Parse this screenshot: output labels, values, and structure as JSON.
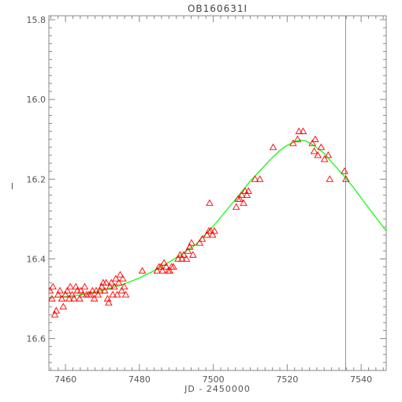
{
  "chart_data": {
    "type": "scatter",
    "title": "OB160631I",
    "xlabel": "JD - 2450000",
    "ylabel": "I",
    "xlim": [
      7455.5,
      7546.8
    ],
    "ylim": [
      16.68,
      15.79
    ],
    "y_inverted": true,
    "xticks": [
      7460,
      7480,
      7500,
      7520,
      7540
    ],
    "yticks": [
      15.8,
      16.0,
      16.2,
      16.4,
      16.6
    ],
    "xtick_labels": [
      "7460",
      "7480",
      "7500",
      "7520",
      "7540"
    ],
    "ytick_labels": [
      "15.8",
      "16.0",
      "16.2",
      "16.4",
      "16.6"
    ],
    "grid": false,
    "marker": "triangle",
    "colors": {
      "points": "#ff0000",
      "model": "#00ff00",
      "vline": "#8888cc",
      "axes": "#888888"
    },
    "vertical_line": {
      "x": 7535.8
    },
    "series": [
      {
        "points": [
          [
            7455.8,
            16.48
          ],
          [
            7456.3,
            16.5
          ],
          [
            7456.6,
            16.47
          ],
          [
            7457.1,
            16.54
          ],
          [
            7457.5,
            16.53
          ],
          [
            7458.0,
            16.49
          ],
          [
            7458.5,
            16.48
          ],
          [
            7459.0,
            16.5
          ],
          [
            7459.4,
            16.52
          ],
          [
            7460.0,
            16.49
          ],
          [
            7460.5,
            16.48
          ],
          [
            7461.0,
            16.5
          ],
          [
            7461.3,
            16.47
          ],
          [
            7461.8,
            16.49
          ],
          [
            7462.3,
            16.5
          ],
          [
            7462.8,
            16.47
          ],
          [
            7463.2,
            16.48
          ],
          [
            7463.8,
            16.5
          ],
          [
            7464.2,
            16.48
          ],
          [
            7464.7,
            16.49
          ],
          [
            7465.2,
            16.47
          ],
          [
            7465.7,
            16.49
          ],
          [
            7466.3,
            16.49
          ],
          [
            7466.8,
            16.49
          ],
          [
            7467.3,
            16.48
          ],
          [
            7467.8,
            16.5
          ],
          [
            7468.3,
            16.48
          ],
          [
            7468.8,
            16.49
          ],
          [
            7469.3,
            16.48
          ],
          [
            7469.8,
            16.47
          ],
          [
            7470.2,
            16.46
          ],
          [
            7470.6,
            16.48
          ],
          [
            7471.0,
            16.46
          ],
          [
            7471.4,
            16.5
          ],
          [
            7471.7,
            16.51
          ],
          [
            7472.0,
            16.47
          ],
          [
            7472.4,
            16.46
          ],
          [
            7472.8,
            16.49
          ],
          [
            7473.2,
            16.47
          ],
          [
            7473.6,
            16.45
          ],
          [
            7474.0,
            16.49
          ],
          [
            7474.4,
            16.46
          ],
          [
            7474.8,
            16.44
          ],
          [
            7475.2,
            16.48
          ],
          [
            7475.5,
            16.45
          ],
          [
            7475.9,
            16.47
          ],
          [
            7476.3,
            16.49
          ],
          [
            7480.8,
            16.43
          ],
          [
            7484.8,
            16.43
          ],
          [
            7485.3,
            16.42
          ],
          [
            7485.8,
            16.42
          ],
          [
            7486.2,
            16.43
          ],
          [
            7486.7,
            16.41
          ],
          [
            7487.3,
            16.42
          ],
          [
            7487.8,
            16.43
          ],
          [
            7488.2,
            16.43
          ],
          [
            7488.7,
            16.42
          ],
          [
            7489.2,
            16.42
          ],
          [
            7490.5,
            16.4
          ],
          [
            7491.0,
            16.39
          ],
          [
            7491.5,
            16.4
          ],
          [
            7492.0,
            16.39
          ],
          [
            7492.7,
            16.4
          ],
          [
            7493.1,
            16.38
          ],
          [
            7493.6,
            16.37
          ],
          [
            7494.1,
            16.36
          ],
          [
            7494.5,
            16.39
          ],
          [
            7496.3,
            16.36
          ],
          [
            7497.0,
            16.35
          ],
          [
            7498.3,
            16.34
          ],
          [
            7498.8,
            16.33
          ],
          [
            7499.3,
            16.33
          ],
          [
            7499.8,
            16.34
          ],
          [
            7500.3,
            16.33
          ],
          [
            7499.0,
            16.26
          ],
          [
            7506.2,
            16.27
          ],
          [
            7506.7,
            16.25
          ],
          [
            7507.2,
            16.25
          ],
          [
            7507.7,
            16.24
          ],
          [
            7508.2,
            16.26
          ],
          [
            7508.6,
            16.23
          ],
          [
            7509.1,
            16.24
          ],
          [
            7509.5,
            16.23
          ],
          [
            7511.3,
            16.2
          ],
          [
            7512.6,
            16.2
          ],
          [
            7516.2,
            16.12
          ],
          [
            7521.6,
            16.11
          ],
          [
            7522.8,
            16.1
          ],
          [
            7523.2,
            16.08
          ],
          [
            7524.3,
            16.08
          ],
          [
            7526.8,
            16.11
          ],
          [
            7527.3,
            16.13
          ],
          [
            7527.6,
            16.1
          ],
          [
            7528.3,
            16.14
          ],
          [
            7529.2,
            16.12
          ],
          [
            7530.1,
            16.15
          ],
          [
            7531.1,
            16.14
          ],
          [
            7531.5,
            16.2
          ],
          [
            7535.5,
            16.18
          ],
          [
            7535.9,
            16.2
          ]
        ]
      },
      {
        "type": "line",
        "points": [
          [
            7455.5,
            16.497
          ],
          [
            7460,
            16.495
          ],
          [
            7465,
            16.489
          ],
          [
            7470,
            16.479
          ],
          [
            7475,
            16.466
          ],
          [
            7480,
            16.448
          ],
          [
            7485,
            16.425
          ],
          [
            7490,
            16.397
          ],
          [
            7495,
            16.366
          ],
          [
            7500,
            16.318
          ],
          [
            7505,
            16.262
          ],
          [
            7510,
            16.205
          ],
          [
            7515,
            16.155
          ],
          [
            7518,
            16.128
          ],
          [
            7520,
            16.115
          ],
          [
            7522,
            16.106
          ],
          [
            7523.5,
            16.102
          ],
          [
            7525,
            16.104
          ],
          [
            7527,
            16.114
          ],
          [
            7530,
            16.135
          ],
          [
            7532,
            16.157
          ],
          [
            7535,
            16.188
          ],
          [
            7538,
            16.222
          ],
          [
            7540,
            16.247
          ],
          [
            7543,
            16.284
          ],
          [
            7546.8,
            16.33
          ]
        ]
      }
    ]
  }
}
